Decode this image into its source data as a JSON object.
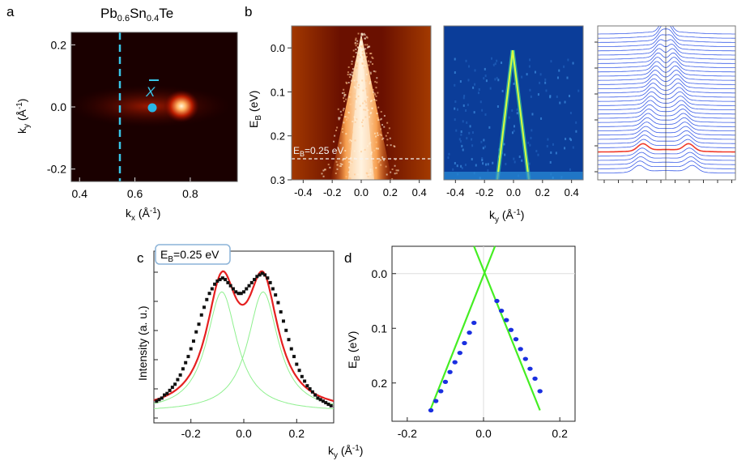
{
  "figure": {
    "panel_labels": {
      "a": "a",
      "b": "b",
      "c": "c",
      "d": "d"
    },
    "title": {
      "pre": "Pb",
      "sub1": "0.6",
      "mid": "Sn",
      "sub2": "0.4",
      "post": "Te"
    },
    "point_label": "X"
  },
  "chart_data": [
    {
      "id": "a",
      "type": "heatmap",
      "xlabel": {
        "main": "k",
        "sub": "x",
        "unit_pre": " (Å",
        "unit_sup": "-1",
        "unit_post": ")"
      },
      "ylabel": {
        "main": "k",
        "sub": "y",
        "unit_pre": " (Å",
        "unit_sup": "-1",
        "unit_post": ")"
      },
      "xlim": [
        0.37,
        0.97
      ],
      "ylim": [
        -0.24,
        0.24
      ],
      "xticks": [
        "0.4",
        "0.6",
        "0.8"
      ],
      "yticks": [
        "0.2",
        "0.0",
        "-0.2"
      ],
      "xtick_values": [
        0.4,
        0.6,
        0.8
      ],
      "ytick_values": [
        0.2,
        0.0,
        -0.2
      ],
      "annotations": {
        "cut_kx": 0.57,
        "x_point_kx": 0.69,
        "x_point_ky": 0.0,
        "spot_kx": 0.78,
        "spot_ky": 0.0
      },
      "colors": {
        "background": "#1a0000",
        "cut": "#39c6e8",
        "point": "#29b6e6",
        "spot": "#ffd9a0"
      }
    },
    {
      "id": "b",
      "type": "heatmap",
      "ylabel": {
        "main": "E",
        "sub": "B",
        "unit": " (eV)"
      },
      "xlabel": {
        "main": "k",
        "sub": "y",
        "unit_pre": " (Å",
        "unit_sup": "-1",
        "unit_post": ")"
      },
      "xlim": [
        -0.48,
        0.48
      ],
      "ylim": [
        -0.05,
        0.3
      ],
      "xticks": [
        "-0.4",
        "-0.2",
        "0.0",
        "0.2",
        "0.4"
      ],
      "xtick_values": [
        -0.4,
        -0.2,
        0.0,
        0.2,
        0.4
      ],
      "yticks": [
        "0.0",
        "0.1",
        "0.2",
        "0.3"
      ],
      "ytick_values": [
        0.0,
        0.1,
        0.2,
        0.3
      ],
      "cut_label": {
        "main": "E",
        "sub": "B",
        "rest": "=0.25 eV"
      },
      "cut_energy": 0.25,
      "panels": [
        "intensity map",
        "second derivative map",
        "MDC stack"
      ],
      "colors": {
        "raw_bg": "#5a0a00",
        "raw_peak": "#fff4dc",
        "deriv_bg": "#0b3d99",
        "deriv_peak": "#c8ff40",
        "mdc": "#3c5ee8",
        "mdc_highlight": "#f03a2a"
      }
    },
    {
      "id": "c",
      "type": "line",
      "label_box": {
        "main": "E",
        "sub": "B",
        "rest": "=0.25 eV"
      },
      "ylabel": "Intensity (a. u.)",
      "xlabel": {
        "main": "k",
        "sub": "y",
        "unit_pre": " (Å",
        "unit_sup": "-1",
        "unit_post": ")"
      },
      "xlim": [
        -0.34,
        0.34
      ],
      "ylim": [
        0,
        1.0
      ],
      "xticks": [
        "-0.2",
        "0.0",
        "0.2"
      ],
      "xtick_values": [
        -0.2,
        0.0,
        0.2
      ],
      "series": [
        {
          "kind": "data",
          "color": "#111111",
          "x": [
            -0.33,
            -0.32,
            -0.31,
            -0.3,
            -0.29,
            -0.28,
            -0.27,
            -0.26,
            -0.25,
            -0.24,
            -0.23,
            -0.22,
            -0.21,
            -0.2,
            -0.19,
            -0.18,
            -0.17,
            -0.16,
            -0.15,
            -0.14,
            -0.13,
            -0.12,
            -0.11,
            -0.1,
            -0.09,
            -0.08,
            -0.07,
            -0.06,
            -0.05,
            -0.04,
            -0.03,
            -0.02,
            -0.01,
            0.0,
            0.01,
            0.02,
            0.03,
            0.04,
            0.05,
            0.06,
            0.07,
            0.08,
            0.09,
            0.1,
            0.11,
            0.12,
            0.13,
            0.14,
            0.15,
            0.16,
            0.17,
            0.18,
            0.19,
            0.2,
            0.21,
            0.22,
            0.23,
            0.24,
            0.25,
            0.26,
            0.27,
            0.28,
            0.29,
            0.3,
            0.31,
            0.32,
            0.33
          ],
          "y": [
            0.12,
            0.13,
            0.14,
            0.16,
            0.17,
            0.19,
            0.21,
            0.23,
            0.26,
            0.29,
            0.33,
            0.37,
            0.41,
            0.46,
            0.51,
            0.57,
            0.62,
            0.68,
            0.73,
            0.78,
            0.82,
            0.85,
            0.88,
            0.9,
            0.91,
            0.92,
            0.91,
            0.89,
            0.87,
            0.85,
            0.83,
            0.82,
            0.82,
            0.83,
            0.85,
            0.87,
            0.89,
            0.91,
            0.93,
            0.94,
            0.95,
            0.94,
            0.92,
            0.89,
            0.85,
            0.81,
            0.76,
            0.7,
            0.64,
            0.58,
            0.52,
            0.46,
            0.41,
            0.36,
            0.32,
            0.28,
            0.25,
            0.22,
            0.2,
            0.18,
            0.16,
            0.14,
            0.13,
            0.12,
            0.11,
            0.1,
            0.09
          ]
        },
        {
          "kind": "fit",
          "color": "#e52020"
        },
        {
          "kind": "component",
          "color": "#8ff08f",
          "center": -0.083,
          "width": 0.07,
          "amp": 0.78
        },
        {
          "kind": "component",
          "color": "#8ff08f",
          "center": 0.073,
          "width": 0.07,
          "amp": 0.78
        }
      ],
      "baseline": 0.05
    },
    {
      "id": "d",
      "type": "scatter",
      "ylabel": {
        "main": "E",
        "sub": "B",
        "unit": " (eV)"
      },
      "xlim": [
        -0.24,
        0.24
      ],
      "ylim": [
        -0.05,
        0.27
      ],
      "xticks": [
        "-0.2",
        "0.0",
        "0.2"
      ],
      "xtick_values": [
        -0.2,
        0.0,
        0.2
      ],
      "yticks": [
        "0.0",
        "0.1",
        "0.2"
      ],
      "ytick_values": [
        0.0,
        0.1,
        0.2
      ],
      "series": [
        {
          "name": "",
          "color": "#1a2fe0",
          "x": [
            -0.138,
            -0.125,
            -0.112,
            -0.1,
            -0.088,
            -0.075,
            -0.062,
            -0.05,
            -0.037,
            -0.025,
            0.035,
            0.047,
            0.06,
            0.072,
            0.085,
            0.097,
            0.11,
            0.122,
            0.135,
            0.148
          ],
          "y": [
            0.25,
            0.233,
            0.215,
            0.198,
            0.18,
            0.162,
            0.145,
            0.127,
            0.108,
            0.09,
            0.05,
            0.068,
            0.085,
            0.103,
            0.12,
            0.138,
            0.156,
            0.174,
            0.192,
            0.215
          ]
        }
      ],
      "lines": [
        {
          "color": "#44ee22",
          "x": [
            -0.14,
            0.03
          ],
          "y": [
            0.25,
            -0.05
          ]
        },
        {
          "color": "#44ee22",
          "x": [
            -0.025,
            0.148
          ],
          "y": [
            -0.05,
            0.25
          ]
        }
      ]
    }
  ]
}
